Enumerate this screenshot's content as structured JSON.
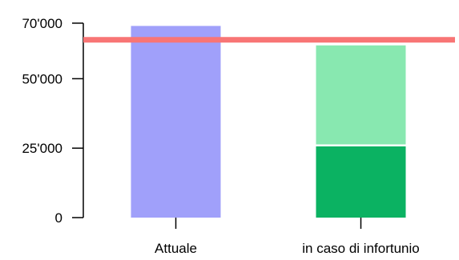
{
  "chart_data": {
    "type": "bar",
    "stacked": true,
    "title": "",
    "xlabel": "",
    "ylabel": "",
    "categories": [
      "Attuale",
      "in caso di infortunio"
    ],
    "series": [
      {
        "color": "#a0a0fa",
        "values": [
          69000,
          0
        ]
      },
      {
        "color": "#0bb262",
        "values": [
          0,
          26000
        ]
      },
      {
        "color": "#88e8b0",
        "values": [
          0,
          36000
        ]
      }
    ],
    "reference_line": {
      "value": 64000,
      "color": "#f87575"
    },
    "ylim": [
      0,
      72000
    ],
    "y_ticks": [
      {
        "value": 0,
        "label": "0"
      },
      {
        "value": 25000,
        "label": "25'000"
      },
      {
        "value": 50000,
        "label": "50'000"
      },
      {
        "value": 70000,
        "label": "70'000"
      }
    ],
    "grid": false,
    "legend": "none"
  }
}
